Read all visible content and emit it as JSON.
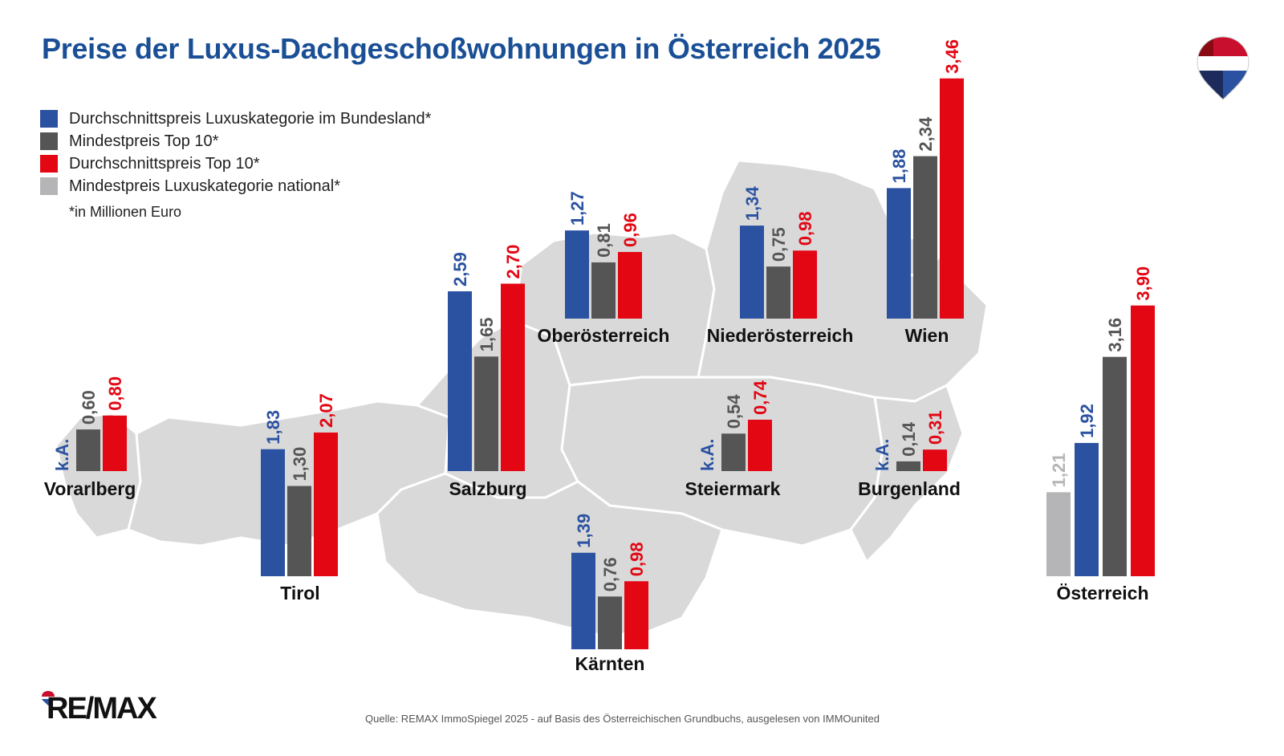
{
  "title": "Preise der Luxus-Dachgeschoßwohnungen in Österreich 2025",
  "legend": [
    {
      "label": "Durchschnittspreis Luxuskategorie im Bundesland*",
      "color": "#2b52a1"
    },
    {
      "label": "Mindestpreis Top 10*",
      "color": "#555555"
    },
    {
      "label": "Durchschnittspreis Top 10*",
      "color": "#e30613"
    },
    {
      "label": "Mindestpreis Luxuskategorie national*",
      "color": "#b5b5b7"
    }
  ],
  "note": "*in Millionen Euro",
  "source": "Quelle: REMAX ImmoSpiegel 2025 - auf Basis des Österreichischen Grundbuchs, ausgelesen von IMMOunited",
  "logo": "RE/MAX",
  "colors": {
    "blue": "#2b52a1",
    "dark": "#555555",
    "red": "#e30613",
    "grey": "#b5b5b7",
    "title": "#1a4f96",
    "map": "#d9d9d9"
  },
  "chart_data": {
    "type": "bar",
    "title": "Preise der Luxus-Dachgeschoßwohnungen in Österreich 2025",
    "unit": "Millionen Euro",
    "series": [
      {
        "name": "Durchschnittspreis Luxuskategorie im Bundesland*",
        "color": "#2b52a1"
      },
      {
        "name": "Mindestpreis Top 10*",
        "color": "#555555"
      },
      {
        "name": "Durchschnittspreis Top 10*",
        "color": "#e30613"
      },
      {
        "name": "Mindestpreis Luxuskategorie national*",
        "color": "#b5b5b7"
      }
    ],
    "groups": [
      {
        "region": "Vorarlberg",
        "avg_lux_state": null,
        "avg_lux_state_label": "k.A.",
        "min_top10": 0.6,
        "min_top10_label": "0,60",
        "avg_top10": 0.8,
        "avg_top10_label": "0,80"
      },
      {
        "region": "Tirol",
        "avg_lux_state": 1.83,
        "avg_lux_state_label": "1,83",
        "min_top10": 1.3,
        "min_top10_label": "1,30",
        "avg_top10": 2.07,
        "avg_top10_label": "2,07"
      },
      {
        "region": "Salzburg",
        "avg_lux_state": 2.59,
        "avg_lux_state_label": "2,59",
        "min_top10": 1.65,
        "min_top10_label": "1,65",
        "avg_top10": 2.7,
        "avg_top10_label": "2,70"
      },
      {
        "region": "Oberösterreich",
        "avg_lux_state": 1.27,
        "avg_lux_state_label": "1,27",
        "min_top10": 0.81,
        "min_top10_label": "0,81",
        "avg_top10": 0.96,
        "avg_top10_label": "0,96"
      },
      {
        "region": "Niederösterreich",
        "avg_lux_state": 1.34,
        "avg_lux_state_label": "1,34",
        "min_top10": 0.75,
        "min_top10_label": "0,75",
        "avg_top10": 0.98,
        "avg_top10_label": "0,98"
      },
      {
        "region": "Wien",
        "avg_lux_state": 1.88,
        "avg_lux_state_label": "1,88",
        "min_top10": 2.34,
        "min_top10_label": "2,34",
        "avg_top10": 3.46,
        "avg_top10_label": "3,46"
      },
      {
        "region": "Steiermark",
        "avg_lux_state": null,
        "avg_lux_state_label": "k.A.",
        "min_top10": 0.54,
        "min_top10_label": "0,54",
        "avg_top10": 0.74,
        "avg_top10_label": "0,74"
      },
      {
        "region": "Burgenland",
        "avg_lux_state": null,
        "avg_lux_state_label": "k.A.",
        "min_top10": 0.14,
        "min_top10_label": "0,14",
        "avg_top10": 0.31,
        "avg_top10_label": "0,31"
      },
      {
        "region": "Kärnten",
        "avg_lux_state": 1.39,
        "avg_lux_state_label": "1,39",
        "min_top10": 0.76,
        "min_top10_label": "0,76",
        "avg_top10": 0.98,
        "avg_top10_label": "0,98"
      }
    ],
    "national": {
      "region": "Österreich",
      "min_lux_national": 1.21,
      "min_lux_national_label": "1,21",
      "avg_lux_state": 1.92,
      "avg_lux_state_label": "1,92",
      "min_top10": 3.16,
      "min_top10_label": "3,16",
      "avg_top10": 3.9,
      "avg_top10_label": "3,90"
    }
  }
}
